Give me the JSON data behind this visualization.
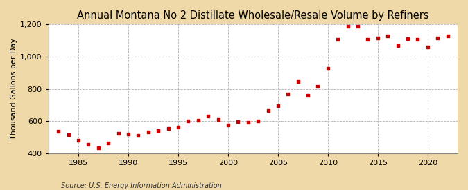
{
  "title": "Annual Montana No 2 Distillate Wholesale/Resale Volume by Refiners",
  "ylabel": "Thousand Gallons per Day",
  "source": "Source: U.S. Energy Information Administration",
  "background_color": "#f0d9a8",
  "plot_background_color": "#ffffff",
  "marker_color": "#cc0000",
  "grid_color": "#aaaaaa",
  "years": [
    1983,
    1984,
    1985,
    1986,
    1987,
    1988,
    1989,
    1990,
    1991,
    1992,
    1993,
    1994,
    1995,
    1996,
    1997,
    1998,
    1999,
    2000,
    2001,
    2002,
    2003,
    2004,
    2005,
    2006,
    2007,
    2008,
    2009,
    2010,
    2011,
    2012,
    2013,
    2014,
    2015,
    2016,
    2017,
    2018,
    2019,
    2020,
    2021,
    2022
  ],
  "values": [
    535,
    515,
    480,
    455,
    435,
    465,
    525,
    520,
    510,
    530,
    540,
    555,
    560,
    600,
    605,
    630,
    610,
    575,
    595,
    590,
    600,
    665,
    695,
    770,
    845,
    760,
    815,
    925,
    1105,
    1190,
    1190,
    1105,
    1115,
    1130,
    1070,
    1110,
    1105,
    1060,
    1115,
    1130
  ],
  "ylim": [
    400,
    1200
  ],
  "yticks": [
    400,
    600,
    800,
    1000,
    1200
  ],
  "xlim": [
    1982,
    2023
  ],
  "xticks": [
    1985,
    1990,
    1995,
    2000,
    2005,
    2010,
    2015,
    2020
  ],
  "title_fontsize": 10.5,
  "label_fontsize": 8,
  "tick_fontsize": 8,
  "source_fontsize": 7
}
